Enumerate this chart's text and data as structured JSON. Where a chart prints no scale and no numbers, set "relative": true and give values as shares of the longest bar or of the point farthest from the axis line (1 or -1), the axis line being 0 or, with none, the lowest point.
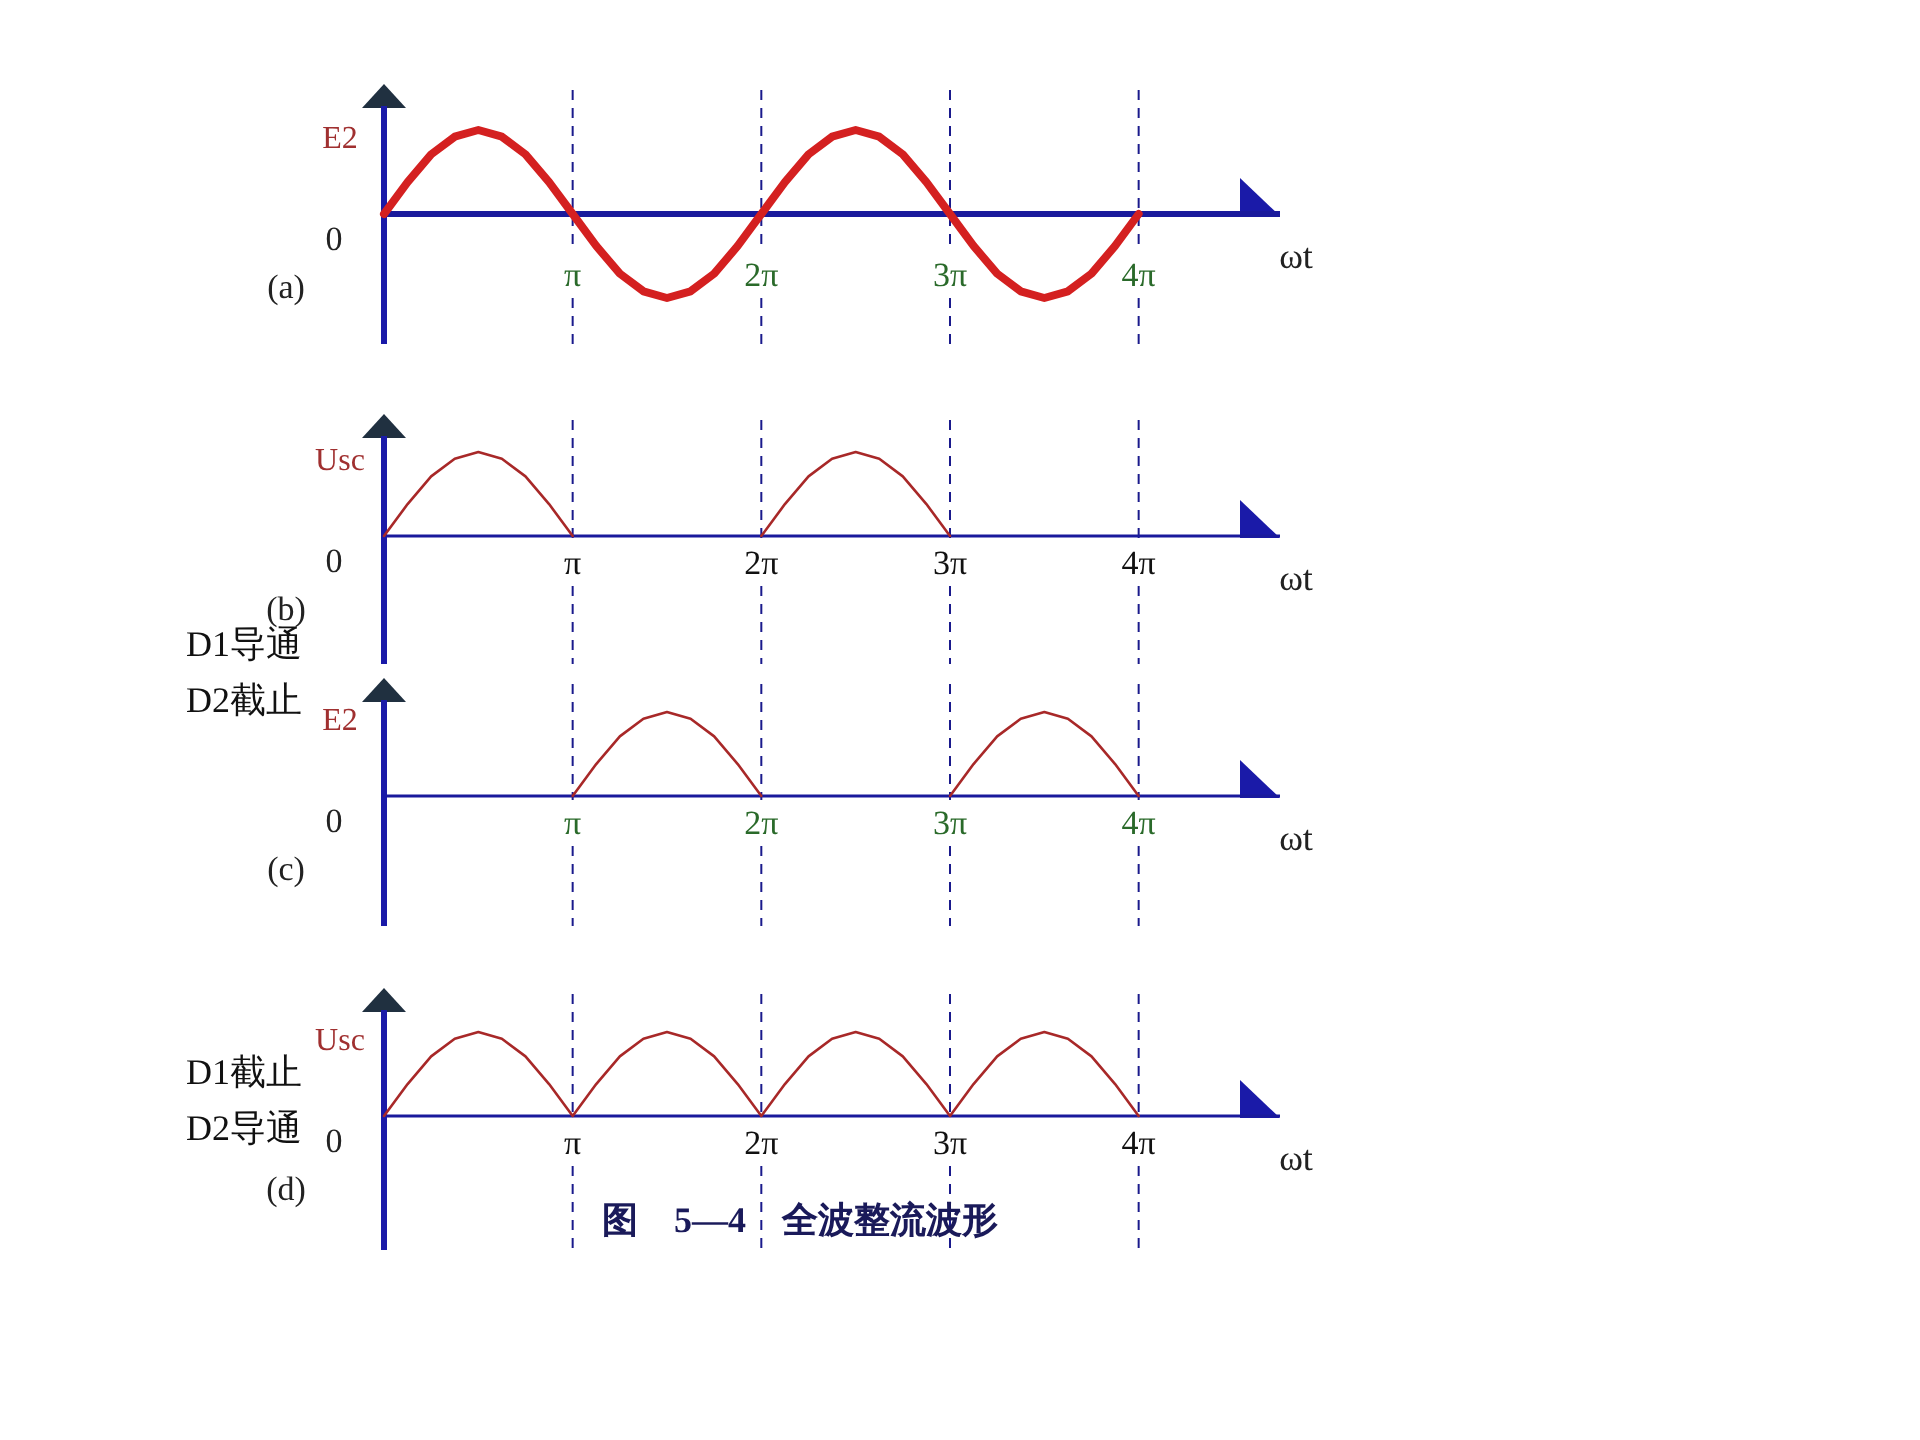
{
  "chart_data": [
    {
      "type": "line",
      "relative": true,
      "ylabel": "E2",
      "xlabel": "ωt",
      "xlim": [
        0,
        14.92
      ],
      "xticks": [
        {
          "value": 3.1416,
          "label": "π"
        },
        {
          "value": 6.2832,
          "label": "2π"
        },
        {
          "value": 9.4248,
          "label": "3π"
        },
        {
          "value": 12.5664,
          "label": "4π"
        }
      ],
      "x": [
        0,
        0.393,
        0.785,
        1.178,
        1.571,
        1.963,
        2.356,
        2.749,
        3.142,
        3.534,
        3.927,
        4.32,
        4.712,
        5.105,
        5.498,
        5.89,
        6.283,
        6.676,
        7.069,
        7.461,
        7.854,
        8.247,
        8.639,
        9.032,
        9.425,
        9.817,
        10.21,
        10.603,
        10.996,
        11.388,
        11.781,
        12.174,
        12.566
      ],
      "series": [
        {
          "color": "#d42020",
          "values": [
            0,
            0.38,
            0.71,
            0.92,
            1,
            0.92,
            0.71,
            0.38,
            0,
            -0.38,
            -0.71,
            -0.92,
            -1,
            -0.92,
            -0.71,
            -0.38,
            0,
            0.38,
            0.71,
            0.92,
            1,
            0.92,
            0.71,
            0.38,
            0,
            -0.38,
            -0.71,
            -0.92,
            -1,
            -0.92,
            -0.71,
            -0.38,
            0
          ]
        }
      ],
      "ref_lines": [
        {
          "axis": "x",
          "value": 3.1416,
          "line_style": "dashed",
          "color": "#1a1a8c"
        },
        {
          "axis": "x",
          "value": 6.2832,
          "line_style": "dashed",
          "color": "#1a1a8c"
        },
        {
          "axis": "x",
          "value": 9.4248,
          "line_style": "dashed",
          "color": "#1a1a8c"
        },
        {
          "axis": "x",
          "value": 12.5664,
          "line_style": "dashed",
          "color": "#1a1a8c"
        }
      ],
      "annotations": [
        "0",
        "(a)"
      ]
    },
    {
      "type": "line",
      "relative": true,
      "ylabel": "Usc",
      "xlabel": "ωt",
      "xlim": [
        0,
        14.92
      ],
      "xticks": [
        {
          "value": 3.1416,
          "label": "π"
        },
        {
          "value": 6.2832,
          "label": "2π"
        },
        {
          "value": 9.4248,
          "label": "3π"
        },
        {
          "value": 12.5664,
          "label": "4π"
        }
      ],
      "series": [
        {
          "color": "#a82828",
          "x": [
            0,
            0.393,
            0.785,
            1.178,
            1.571,
            1.963,
            2.356,
            2.749,
            3.142,
            3.534,
            3.927,
            4.32,
            4.712,
            5.105,
            5.498,
            5.89,
            6.283,
            6.676,
            7.069,
            7.461,
            7.854,
            8.247,
            8.639,
            9.032,
            9.425
          ],
          "values": [
            0,
            0.38,
            0.71,
            0.92,
            1,
            0.92,
            0.71,
            0.38,
            0,
            null,
            null,
            null,
            null,
            null,
            null,
            null,
            0,
            0.38,
            0.71,
            0.92,
            1,
            0.92,
            0.71,
            0.38,
            0
          ]
        }
      ],
      "ref_lines": [
        {
          "axis": "x",
          "value": 3.1416,
          "line_style": "dashed",
          "color": "#1a1a8c"
        },
        {
          "axis": "x",
          "value": 6.2832,
          "line_style": "dashed",
          "color": "#1a1a8c"
        },
        {
          "axis": "x",
          "value": 9.4248,
          "line_style": "dashed",
          "color": "#1a1a8c"
        },
        {
          "axis": "x",
          "value": 12.5664,
          "line_style": "dashed",
          "color": "#1a1a8c"
        }
      ],
      "annotations": [
        "0",
        "(b)",
        "D1导通",
        "D2截止"
      ]
    },
    {
      "type": "line",
      "relative": true,
      "ylabel": "E2",
      "xlabel": "ωt",
      "xlim": [
        0,
        14.92
      ],
      "xticks": [
        {
          "value": 3.1416,
          "label": "π"
        },
        {
          "value": 6.2832,
          "label": "2π"
        },
        {
          "value": 9.4248,
          "label": "3π"
        },
        {
          "value": 12.5664,
          "label": "4π"
        }
      ],
      "series": [
        {
          "color": "#a82828",
          "x": [
            3.142,
            3.534,
            3.927,
            4.32,
            4.712,
            5.105,
            5.498,
            5.89,
            6.283,
            6.676,
            7.069,
            7.461,
            7.854,
            8.247,
            8.639,
            9.032,
            9.425,
            9.817,
            10.21,
            10.603,
            10.996,
            11.388,
            11.781,
            12.174,
            12.566
          ],
          "values": [
            0,
            0.38,
            0.71,
            0.92,
            1,
            0.92,
            0.71,
            0.38,
            0,
            null,
            null,
            null,
            null,
            null,
            null,
            null,
            0,
            0.38,
            0.71,
            0.92,
            1,
            0.92,
            0.71,
            0.38,
            0
          ]
        }
      ],
      "ref_lines": [
        {
          "axis": "x",
          "value": 3.1416,
          "line_style": "dashed",
          "color": "#1a1a8c"
        },
        {
          "axis": "x",
          "value": 6.2832,
          "line_style": "dashed",
          "color": "#1a1a8c"
        },
        {
          "axis": "x",
          "value": 9.4248,
          "line_style": "dashed",
          "color": "#1a1a8c"
        },
        {
          "axis": "x",
          "value": 12.5664,
          "line_style": "dashed",
          "color": "#1a1a8c"
        }
      ],
      "annotations": [
        "0",
        "(c)"
      ]
    },
    {
      "type": "line",
      "relative": true,
      "ylabel": "Usc",
      "xlabel": "ωt",
      "title": "图　5—4　全波整流波形",
      "xlim": [
        0,
        14.92
      ],
      "xticks": [
        {
          "value": 3.1416,
          "label": "π"
        },
        {
          "value": 6.2832,
          "label": "2π"
        },
        {
          "value": 9.4248,
          "label": "3π"
        },
        {
          "value": 12.5664,
          "label": "4π"
        }
      ],
      "x": [
        0,
        0.393,
        0.785,
        1.178,
        1.571,
        1.963,
        2.356,
        2.749,
        3.142,
        3.534,
        3.927,
        4.32,
        4.712,
        5.105,
        5.498,
        5.89,
        6.283,
        6.676,
        7.069,
        7.461,
        7.854,
        8.247,
        8.639,
        9.032,
        9.425,
        9.817,
        10.21,
        10.603,
        10.996,
        11.388,
        11.781,
        12.174,
        12.566
      ],
      "series": [
        {
          "color": "#a82828",
          "values": [
            0,
            0.38,
            0.71,
            0.92,
            1,
            0.92,
            0.71,
            0.38,
            0,
            0.38,
            0.71,
            0.92,
            1,
            0.92,
            0.71,
            0.38,
            0,
            0.38,
            0.71,
            0.92,
            1,
            0.92,
            0.71,
            0.38,
            0,
            0.38,
            0.71,
            0.92,
            1,
            0.92,
            0.71,
            0.38,
            0
          ]
        }
      ],
      "ref_lines": [
        {
          "axis": "x",
          "value": 3.1416,
          "line_style": "dashed",
          "color": "#1a1a8c"
        },
        {
          "axis": "x",
          "value": 6.2832,
          "line_style": "dashed",
          "color": "#1a1a8c"
        },
        {
          "axis": "x",
          "value": 9.4248,
          "line_style": "dashed",
          "color": "#1a1a8c"
        },
        {
          "axis": "x",
          "value": 12.5664,
          "line_style": "dashed",
          "color": "#1a1a8c"
        }
      ],
      "annotations": [
        "0",
        "(d)",
        "D1截止",
        "D2导通"
      ]
    }
  ]
}
